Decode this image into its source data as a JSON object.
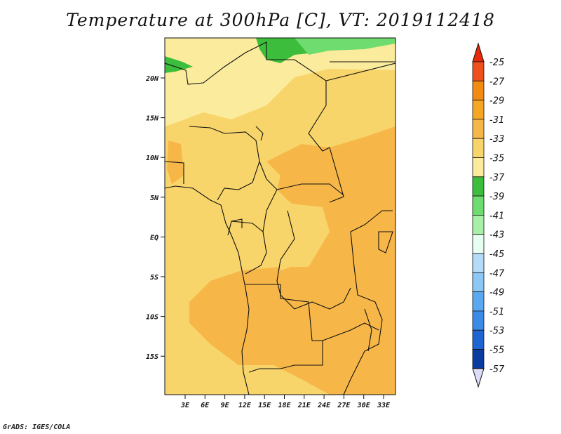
{
  "title": "Temperature at 300hPa [C], VT: 2019112418",
  "footer": "GrADS: IGES/COLA",
  "axes": {
    "lat_labels": [
      "20N",
      "15N",
      "10N",
      "5N",
      "EQ",
      "5S",
      "10S",
      "15S"
    ],
    "lon_labels": [
      "3E",
      "6E",
      "9E",
      "12E",
      "15E",
      "18E",
      "21E",
      "24E",
      "27E",
      "30E",
      "33E"
    ]
  },
  "colorbar": {
    "levels": [
      "-25",
      "-27",
      "-29",
      "-31",
      "-33",
      "-35",
      "-37",
      "-39",
      "-41",
      "-43",
      "-45",
      "-47",
      "-49",
      "-51",
      "-53",
      "-55",
      "-57"
    ],
    "colors": [
      "#f0501e",
      "#f38a12",
      "#f5a622",
      "#f7b748",
      "#f8d56b",
      "#fbeb9c",
      "#3cbe3c",
      "#6edc6e",
      "#a8f0a8",
      "#e6fff0",
      "#b4dcf8",
      "#8cc8f5",
      "#5aa8f0",
      "#3a8ce6",
      "#1e64d2",
      "#0a3ca0",
      "#000a64"
    ],
    "top_color": "#e8280a",
    "bottom_color": "#dcdcf8"
  }
}
